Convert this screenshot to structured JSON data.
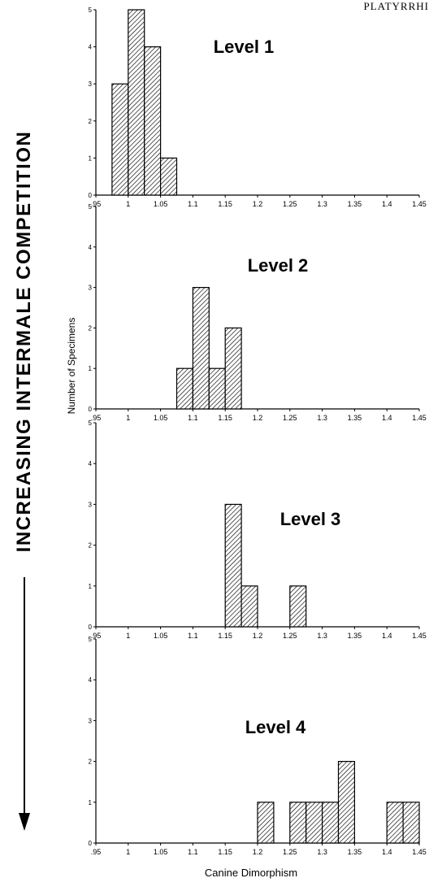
{
  "header": {
    "running_head": "PLATYRRHI"
  },
  "side_title": "INCREASING INTERMALE COMPETITION",
  "y_axis_label": "Number of Specimens",
  "x_axis_label": "Canine Dimorphism",
  "chart_data": [
    {
      "type": "bar",
      "title": "Level 1",
      "xlabel": "Canine Dimorphism",
      "ylabel": "Number of Specimens",
      "x_ticks": [
        ".95",
        "1",
        "1.05",
        "1.1",
        "1.15",
        "1.2",
        "1.25",
        "1.3",
        "1.35",
        "1.4",
        "1.45"
      ],
      "xlim": [
        0.95,
        1.45
      ],
      "ylim": [
        0,
        5
      ],
      "y_ticks": [
        "0",
        "1",
        "2",
        "3",
        "4",
        "5"
      ],
      "bar_width": 0.025,
      "x": [
        0.975,
        1.0,
        1.025,
        1.05
      ],
      "values": [
        3,
        5,
        4,
        1
      ]
    },
    {
      "type": "bar",
      "title": "Level 2",
      "xlabel": "Canine Dimorphism",
      "ylabel": "Number of Specimens",
      "x_ticks": [
        ".95",
        "1",
        "1.05",
        "1.1",
        "1.15",
        "1.2",
        "1.25",
        "1.3",
        "1.35",
        "1.4",
        "1.45"
      ],
      "xlim": [
        0.95,
        1.45
      ],
      "ylim": [
        0,
        5
      ],
      "y_ticks": [
        "0",
        "1",
        "2",
        "3",
        "4",
        "5"
      ],
      "bar_width": 0.025,
      "x": [
        1.075,
        1.1,
        1.125,
        1.15
      ],
      "values": [
        1,
        3,
        1,
        2
      ]
    },
    {
      "type": "bar",
      "title": "Level 3",
      "xlabel": "Canine Dimorphism",
      "ylabel": "Number of Specimens",
      "x_ticks": [
        ".95",
        "1",
        "1.05",
        "1.1",
        "1.15",
        "1.2",
        "1.25",
        "1.3",
        "1.35",
        "1.4",
        "1.45"
      ],
      "xlim": [
        0.95,
        1.45
      ],
      "ylim": [
        0,
        5
      ],
      "y_ticks": [
        "0",
        "1",
        "2",
        "3",
        "4",
        "5"
      ],
      "bar_width": 0.025,
      "x": [
        1.15,
        1.175,
        1.25
      ],
      "values": [
        3,
        1,
        1
      ]
    },
    {
      "type": "bar",
      "title": "Level 4",
      "xlabel": "Canine Dimorphism",
      "ylabel": "Number of Specimens",
      "x_ticks": [
        ".95",
        "1",
        "1.05",
        "1.1",
        "1.15",
        "1.2",
        "1.25",
        "1.3",
        "1.35",
        "1.4",
        "1.45"
      ],
      "xlim": [
        0.95,
        1.45
      ],
      "ylim": [
        0,
        5
      ],
      "y_ticks": [
        "0",
        "1",
        "2",
        "3",
        "4",
        "5"
      ],
      "bar_width": 0.025,
      "x": [
        1.2,
        1.25,
        1.275,
        1.3,
        1.325,
        1.4,
        1.425
      ],
      "values": [
        1,
        1,
        1,
        1,
        2,
        1,
        1
      ]
    }
  ]
}
